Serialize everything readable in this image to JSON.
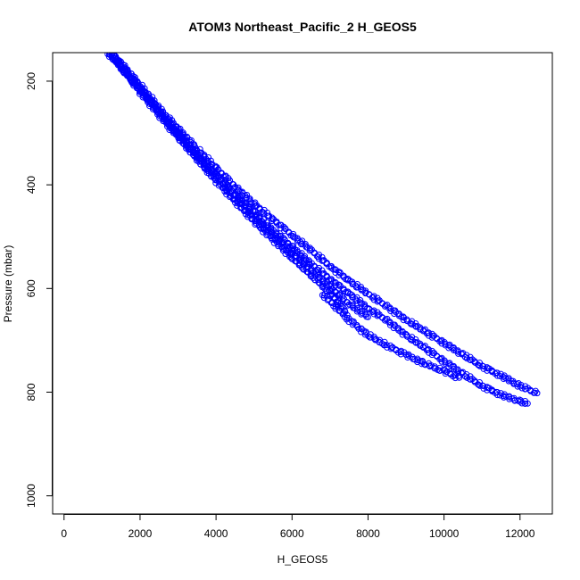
{
  "chart_data": {
    "type": "scatter",
    "title": "ATOM3 Northeast_Pacific_2 H_GEOS5",
    "xlabel": "H_GEOS5",
    "ylabel": "Pressure (mbar)",
    "xlim": [
      -300,
      12850
    ],
    "ylim": [
      1035,
      145
    ],
    "y_reversed": true,
    "xticks": [
      0,
      2000,
      4000,
      6000,
      8000,
      10000,
      12000
    ],
    "yticks": [
      200,
      400,
      600,
      800,
      1000
    ],
    "marker": "open-circle",
    "color": "#0000ff",
    "series": [
      {
        "x": [
          1200,
          1500,
          2000,
          2500,
          3000,
          3500,
          4000,
          4500,
          5000,
          5500,
          6000,
          6500,
          7000,
          7500,
          8000,
          8500,
          9000,
          9500,
          10000,
          10500,
          11000,
          11500,
          12000,
          12450
        ],
        "y": [
          145,
          165,
          208,
          252,
          292,
          330,
          368,
          403,
          437,
          467,
          497,
          526,
          557,
          585,
          610,
          635,
          660,
          683,
          705,
          728,
          750,
          768,
          788,
          802
        ]
      },
      {
        "x": [
          1150,
          1500,
          2000,
          2500,
          3000,
          3500,
          4000,
          4500,
          5000,
          5500,
          6000,
          6500,
          7000,
          7500,
          8000,
          8500,
          9000,
          9500,
          10000,
          10500,
          11000,
          11500,
          12000,
          12200
        ],
        "y": [
          145,
          172,
          214,
          258,
          300,
          342,
          380,
          418,
          454,
          488,
          520,
          552,
          582,
          610,
          638,
          662,
          690,
          715,
          740,
          765,
          788,
          805,
          818,
          822
        ]
      },
      {
        "x": [
          1250,
          2000,
          3000,
          4000,
          5000,
          6000,
          7000,
          7500,
          8000
        ],
        "y": [
          150,
          216,
          303,
          385,
          462,
          530,
          598,
          630,
          655
        ]
      },
      {
        "x": [
          1300,
          2000,
          3000,
          4000,
          5000,
          6000,
          7000,
          7400
        ],
        "y": [
          152,
          220,
          308,
          392,
          470,
          540,
          608,
          645
        ]
      },
      {
        "x": [
          6800,
          7500,
          8000,
          8500,
          9000,
          9500,
          10000,
          10400
        ],
        "y": [
          610,
          660,
          690,
          710,
          728,
          745,
          760,
          772
        ]
      }
    ]
  }
}
